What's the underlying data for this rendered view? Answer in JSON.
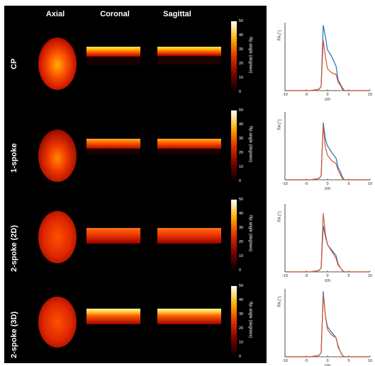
{
  "columns": [
    "Axial",
    "Coronal",
    "Sagittal"
  ],
  "rows": [
    "CP",
    "1-spoke",
    "2-spoke (2D)",
    "2-spoke (3D)"
  ],
  "colorbar": {
    "ticks": [
      "50",
      "40",
      "30",
      "20",
      "10",
      "0"
    ],
    "title": "flip angle (degrees)"
  },
  "colors": {
    "blue": "#1f6fbf",
    "orange": "#d9542b"
  },
  "chart_data": [
    {
      "type": "line",
      "xlabel": "cm",
      "ylabel": "FA (°)",
      "xlim": [
        -10,
        10
      ],
      "ylim": [
        0,
        50
      ],
      "xticks": [
        -10,
        -5,
        0,
        5,
        10
      ],
      "series": [
        {
          "color": "#1f6fbf",
          "x": [
            -10,
            -4,
            -2,
            -1.5,
            -1,
            -0.5,
            0,
            1,
            2,
            2.5,
            3,
            3.5,
            4,
            10
          ],
          "y": [
            0,
            0,
            1,
            3,
            48,
            40,
            30,
            25,
            18,
            8,
            5,
            2,
            0,
            0
          ]
        },
        {
          "color": "#d9542b",
          "x": [
            -10,
            -4,
            -2,
            -1.5,
            -1,
            -0.5,
            0,
            1,
            2,
            2.5,
            3,
            3.5,
            4,
            10
          ],
          "y": [
            0,
            0,
            1,
            3,
            37,
            25,
            16,
            13,
            12,
            6,
            4,
            1,
            0,
            0
          ]
        }
      ]
    },
    {
      "type": "line",
      "xlabel": "cm",
      "ylabel": "FA (°)",
      "xlim": [
        -10,
        10
      ],
      "ylim": [
        0,
        50
      ],
      "xticks": [
        -10,
        -5,
        0,
        5,
        10
      ],
      "series": [
        {
          "color": "#1f6fbf",
          "x": [
            -10,
            -4,
            -2,
            -1.5,
            -1,
            -0.5,
            0,
            1,
            2,
            2.5,
            3,
            3.5,
            4,
            10
          ],
          "y": [
            0,
            0,
            1,
            3,
            42,
            30,
            25,
            20,
            16,
            9,
            6,
            2,
            0,
            0
          ]
        },
        {
          "color": "#d9542b",
          "x": [
            -10,
            -4,
            -2,
            -1.5,
            -1,
            -0.5,
            0,
            1,
            2,
            2.5,
            3,
            3.5,
            4,
            10
          ],
          "y": [
            0,
            0,
            1,
            3,
            40,
            24,
            18,
            14,
            12,
            7,
            4,
            1,
            0,
            0
          ]
        }
      ]
    },
    {
      "type": "line",
      "xlabel": "cm",
      "ylabel": "FA (°)",
      "xlim": [
        -10,
        10
      ],
      "ylim": [
        0,
        50
      ],
      "xticks": [
        -10,
        -5,
        0,
        5,
        10
      ],
      "series": [
        {
          "color": "#1f6fbf",
          "x": [
            -10,
            -4,
            -2,
            -1.5,
            -1,
            -0.5,
            0,
            1,
            2,
            2.5,
            3,
            3.5,
            4,
            10
          ],
          "y": [
            0,
            0,
            1,
            3,
            34,
            26,
            20,
            16,
            12,
            6,
            3,
            1,
            0,
            0
          ]
        },
        {
          "color": "#d9542b",
          "x": [
            -10,
            -4,
            -2,
            -1.5,
            -1,
            -0.5,
            0,
            1,
            2,
            2.5,
            3,
            3.5,
            4,
            10
          ],
          "y": [
            0,
            0,
            1,
            3,
            43,
            28,
            20,
            15,
            10,
            5,
            3,
            1,
            0,
            0
          ]
        }
      ]
    },
    {
      "type": "line",
      "xlabel": "cm",
      "ylabel": "FA (°)",
      "xlim": [
        -10,
        10
      ],
      "ylim": [
        0,
        50
      ],
      "xticks": [
        -10,
        -5,
        0,
        5,
        10
      ],
      "series": [
        {
          "color": "#1f6fbf",
          "x": [
            -10,
            -4,
            -2,
            -1.5,
            -1,
            -0.5,
            0,
            1,
            2,
            2.5,
            3,
            3.5,
            4,
            10
          ],
          "y": [
            0,
            0,
            1,
            3,
            48,
            30,
            22,
            18,
            14,
            8,
            4,
            1,
            0,
            0
          ]
        },
        {
          "color": "#d9542b",
          "x": [
            -10,
            -4,
            -2,
            -1.5,
            -1,
            -0.5,
            0,
            1,
            2,
            2.5,
            3,
            3.5,
            4,
            10
          ],
          "y": [
            0,
            0,
            1,
            3,
            45,
            30,
            20,
            16,
            14,
            7,
            4,
            1,
            0,
            0
          ]
        }
      ]
    }
  ]
}
